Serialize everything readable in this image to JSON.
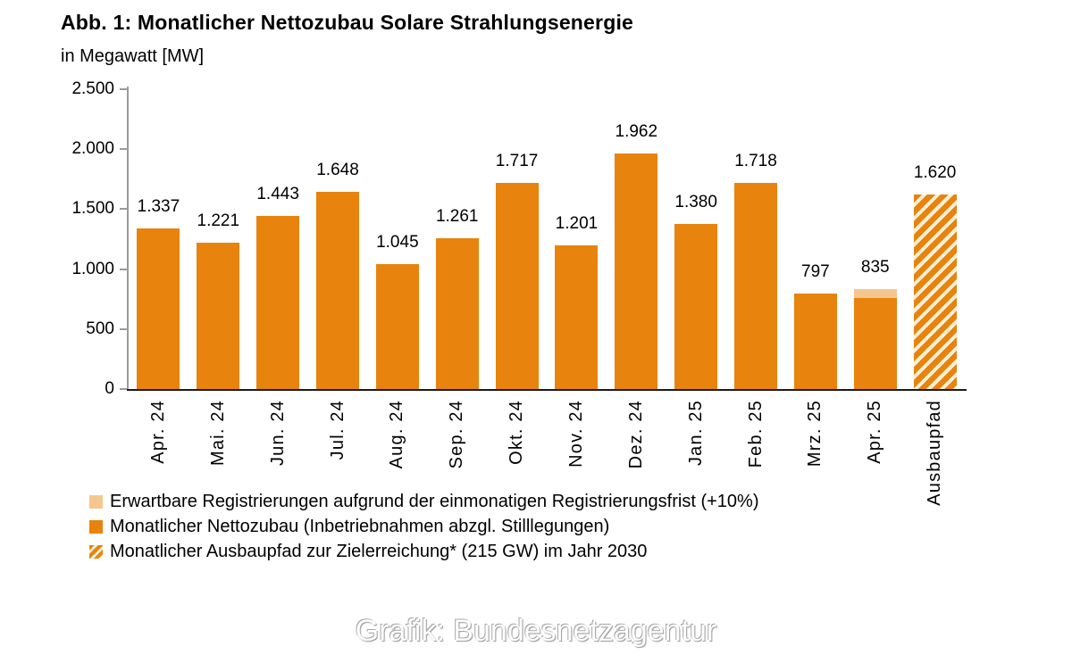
{
  "header": {
    "title": "Abb. 1: Monatlicher Nettozubau Solare Strahlungsenergie",
    "subtitle": "in Megawatt [MW]"
  },
  "colors": {
    "bar_orange": "#E8830D",
    "expected_light_orange": "#F5C78E",
    "hatch_background": "#FBF0D6",
    "axis_gray": "#9b9b9b",
    "axis_black": "#1a1a1a"
  },
  "chart_data": {
    "type": "bar",
    "title": "Abb. 1: Monatlicher Nettozubau Solare Strahlungsenergie",
    "ylabel": "in Megawatt [MW]",
    "ylim": [
      0,
      2500
    ],
    "grid": false,
    "legend_position": "bottom-left",
    "yticks": [
      {
        "value": 2500,
        "label": "2.500"
      },
      {
        "value": 2000,
        "label": "2.000"
      },
      {
        "value": 1500,
        "label": "1.500"
      },
      {
        "value": 1000,
        "label": "1.000"
      },
      {
        "value": 500,
        "label": "500"
      },
      {
        "value": 0,
        "label": "0"
      }
    ],
    "categories": [
      "Apr. 24",
      "Mai. 24",
      "Jun. 24",
      "Jul. 24",
      "Aug. 24",
      "Sep. 24",
      "Okt. 24",
      "Nov. 24",
      "Dez. 24",
      "Jan. 25",
      "Feb. 25",
      "Mrz. 25",
      "Apr. 25",
      "Ausbaupfad"
    ],
    "bars": [
      {
        "category": "Apr. 24",
        "value": 1337,
        "label": "1.337",
        "type": "solid"
      },
      {
        "category": "Mai. 24",
        "value": 1221,
        "label": "1.221",
        "type": "solid"
      },
      {
        "category": "Jun. 24",
        "value": 1443,
        "label": "1.443",
        "type": "solid"
      },
      {
        "category": "Jul. 24",
        "value": 1648,
        "label": "1.648",
        "type": "solid"
      },
      {
        "category": "Aug. 24",
        "value": 1045,
        "label": "1.045",
        "type": "solid"
      },
      {
        "category": "Sep. 24",
        "value": 1261,
        "label": "1.261",
        "type": "solid"
      },
      {
        "category": "Okt. 24",
        "value": 1717,
        "label": "1.717",
        "type": "solid"
      },
      {
        "category": "Nov. 24",
        "value": 1201,
        "label": "1.201",
        "type": "solid"
      },
      {
        "category": "Dez. 24",
        "value": 1962,
        "label": "1.962",
        "type": "solid"
      },
      {
        "category": "Jan. 25",
        "value": 1380,
        "label": "1.380",
        "type": "solid"
      },
      {
        "category": "Feb. 25",
        "value": 1718,
        "label": "1.718",
        "type": "solid"
      },
      {
        "category": "Mrz. 25",
        "value": 797,
        "label": "797",
        "type": "solid"
      },
      {
        "category": "Apr. 25",
        "value": 835,
        "label": "835",
        "type": "stacked",
        "base": 759,
        "expected": 76
      },
      {
        "category": "Ausbaupfad",
        "value": 1620,
        "label": "1.620",
        "type": "hatched"
      }
    ]
  },
  "legend": {
    "items": [
      {
        "swatch": "expected",
        "label": "Erwartbare Registrierungen aufgrund der einmonatigen Registrierungsfrist (+10%)"
      },
      {
        "swatch": "solid",
        "label": "Monatlicher Nettozubau (Inbetriebnahmen abzgl. Stilllegungen)"
      },
      {
        "swatch": "hatched",
        "label": "Monatlicher Ausbaupfad zur Zielerreichung* (215 GW) im Jahr 2030"
      }
    ]
  },
  "watermark": "Grafik: Bundesnetzagentur"
}
